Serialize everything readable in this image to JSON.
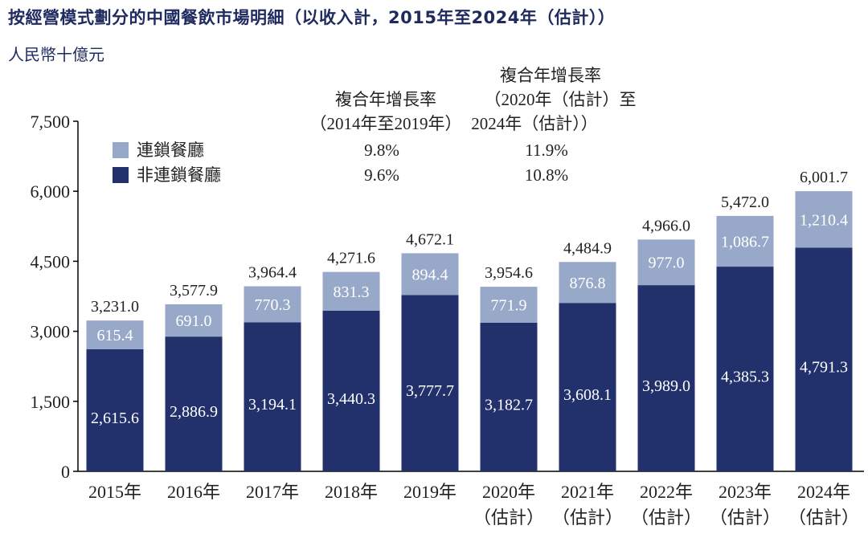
{
  "title": "按經營模式劃分的中國餐飲市場明細（以收入計，2015年至2024年（估計））",
  "unit": "人民幣十億元",
  "colors": {
    "chain": "#98a8c8",
    "non_chain": "#22306b",
    "title": "#1f2a5e"
  },
  "cagr": {
    "headers": [
      [
        "複合年增長率",
        "（2014年至2019年）"
      ],
      [
        "複合年增長率",
        "（2020年（估計）至",
        "2024年（估計））"
      ]
    ],
    "rows": [
      {
        "label": "連鎖餐廳",
        "values": [
          "9.8%",
          "11.9%"
        ]
      },
      {
        "label": "非連鎖餐廳",
        "values": [
          "9.6%",
          "10.8%"
        ]
      }
    ]
  },
  "chart_data": {
    "type": "bar",
    "stacked": true,
    "categories": [
      [
        "2015年"
      ],
      [
        "2016年"
      ],
      [
        "2017年"
      ],
      [
        "2018年"
      ],
      [
        "2019年"
      ],
      [
        "2020年",
        "（估計）"
      ],
      [
        "2021年",
        "（估計）"
      ],
      [
        "2022年",
        "（估計）"
      ],
      [
        "2023年",
        "（估計）"
      ],
      [
        "2024年",
        "（估計）"
      ]
    ],
    "series": [
      {
        "name": "非連鎖餐廳",
        "values": [
          2615.6,
          2886.9,
          3194.1,
          3440.3,
          3777.7,
          3182.7,
          3608.1,
          3989.0,
          4385.3,
          4791.3
        ],
        "labels": [
          "2,615.6",
          "2,886.9",
          "3,194.1",
          "3,440.3",
          "3,777.7",
          "3,182.7",
          "3,608.1",
          "3,989.0",
          "4,385.3",
          "4,791.3"
        ]
      },
      {
        "name": "連鎖餐廳",
        "values": [
          615.4,
          691.0,
          770.3,
          831.3,
          894.4,
          771.9,
          876.8,
          977.0,
          1086.7,
          1210.4
        ],
        "labels": [
          "615.4",
          "691.0",
          "770.3",
          "831.3",
          "894.4",
          "771.9",
          "876.8",
          "977.0",
          "1,086.7",
          "1,210.4"
        ]
      }
    ],
    "totals": [
      "3,231.0",
      "3,577.9",
      "3,964.4",
      "4,271.6",
      "4,672.1",
      "3,954.6",
      "4,484.9",
      "4,966.0",
      "5,472.0",
      "6,001.7"
    ],
    "ylim": [
      0,
      7500
    ],
    "yticks": [
      0,
      1500,
      3000,
      4500,
      6000,
      7500
    ],
    "ytick_labels": [
      "0",
      "1,500",
      "3,000",
      "4,500",
      "6,000",
      "7,500"
    ],
    "grid": false,
    "legend": "top-left"
  }
}
